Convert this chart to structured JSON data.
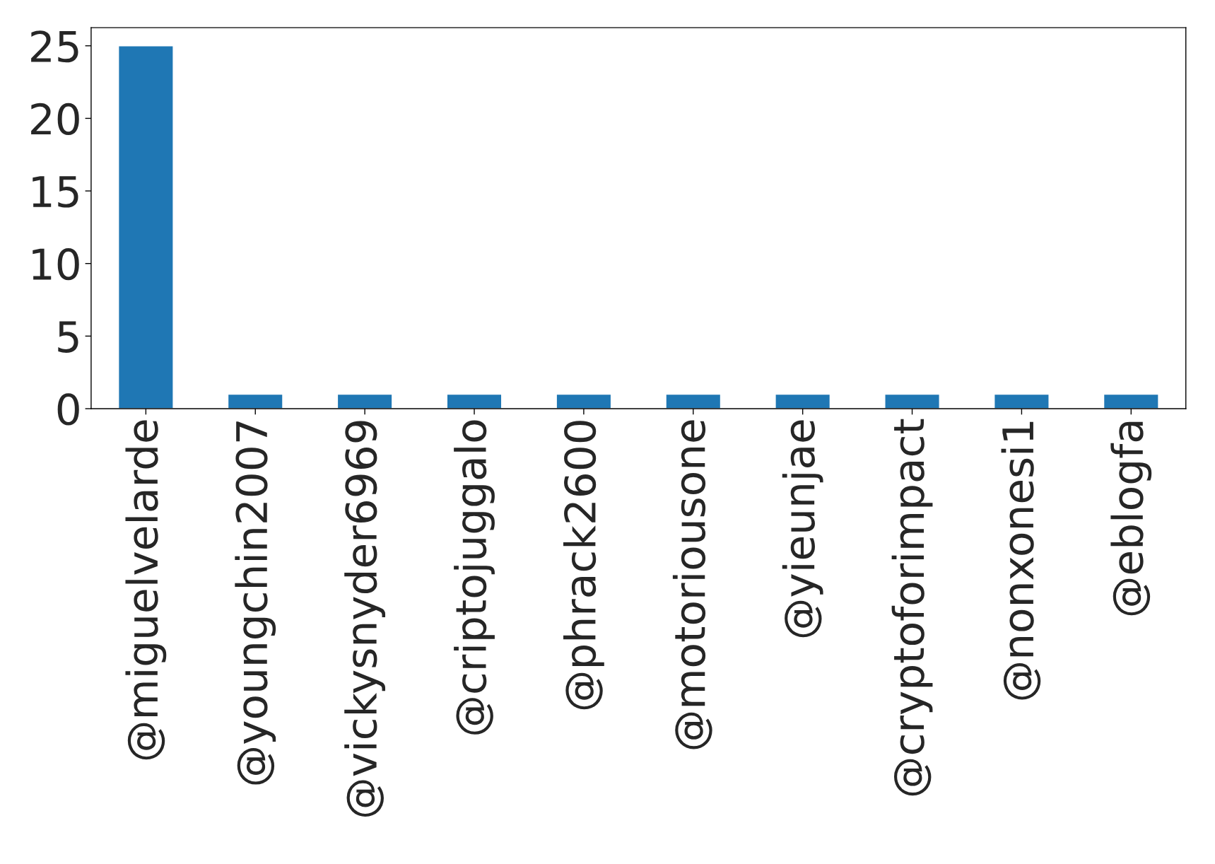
{
  "chart_data": {
    "type": "bar",
    "categories": [
      "@miguelvelarde",
      "@youngchin2007",
      "@vickysnyder6969",
      "@criptojuggalo",
      "@phrack2600",
      "@motoriousone",
      "@yieunjae",
      "@cryptoforimpact",
      "@nonxonesi1",
      "@eblogfa"
    ],
    "values": [
      25,
      1,
      1,
      1,
      1,
      1,
      1,
      1,
      1,
      1
    ],
    "color": "#1f77b4",
    "ylim": [
      0,
      26.25
    ],
    "yticks": [
      0,
      5,
      10,
      15,
      20,
      25
    ],
    "grid": false,
    "legend": false
  }
}
